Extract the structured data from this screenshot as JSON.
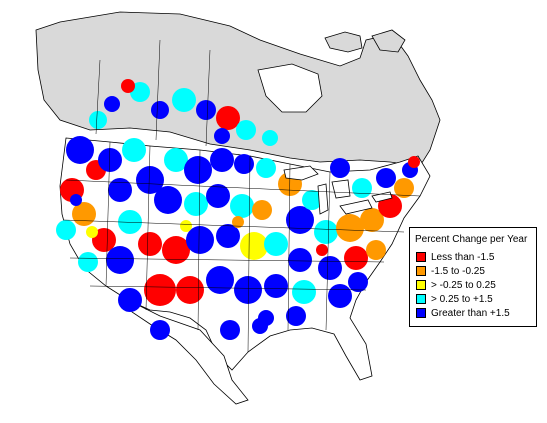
{
  "legend": {
    "title": "Percent Change per Year",
    "items": [
      {
        "label": "Less than -1.5",
        "color": "#ff0000"
      },
      {
        "label": "-1.5 to -0.25",
        "color": "#ff9900"
      },
      {
        "label": "> -0.25 to 0.25",
        "color": "#ffff00"
      },
      {
        "label": "> 0.25 to +1.5",
        "color": "#00ffff"
      },
      {
        "label": "Greater than +1.5",
        "color": "#0000ff"
      }
    ]
  },
  "map": {
    "nodata_color": "#d9d9d9",
    "outline_color": "#000000"
  }
}
